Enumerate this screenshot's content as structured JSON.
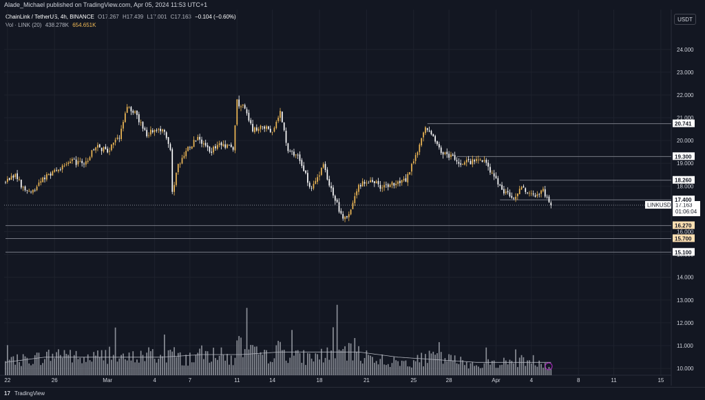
{
  "header": {
    "published": "Alade_Michael published on TradingView.com, Apr 05, 2024 11:53 UTC+1"
  },
  "legend": {
    "symbol": "ChainLink / TetherUS, 4h, BINANCE",
    "open": "O17.267",
    "high": "H17.439",
    "low": "L17.001",
    "close": "C17.163",
    "change": "−0.104 (−0.60%)",
    "vol_label": "Vol · LINK (20)",
    "vol_value": "438.278K",
    "vol_ma": "654.651K"
  },
  "unit_button": "USDT",
  "footer": {
    "brand": "TradingView"
  },
  "colors": {
    "background": "#131722",
    "up_candle": "#f0b955",
    "down_candle": "#ffffff",
    "grid": "#1e222d",
    "level_line": "#787b86",
    "current_price_line": "#b2b5be",
    "volume_bar": "#b2b5be",
    "highlight_label": "#ffe0b2"
  },
  "chart_data": {
    "type": "candlestick",
    "symbol": "LINKUSDT",
    "ylim": [
      9.7,
      24.9
    ],
    "y_ticks": [
      10.0,
      11.0,
      12.0,
      13.0,
      14.0,
      15.0,
      16.0,
      17.0,
      18.0,
      19.0,
      20.0,
      21.0,
      22.0,
      23.0,
      24.0
    ],
    "x_labels": [
      "22",
      "26",
      "Mar",
      "4",
      "7",
      "11",
      "14",
      "18",
      "21",
      "25",
      "28",
      "Apr",
      "4",
      "8",
      "11",
      "15"
    ],
    "x_label_candle_index": [
      1,
      25,
      52,
      76,
      94,
      118,
      136,
      160,
      184,
      208,
      226,
      250,
      268,
      292,
      310,
      334
    ],
    "levels": [
      20.741,
      19.3,
      18.26,
      17.4,
      16.27,
      15.7,
      15.1
    ],
    "highlighted_levels": [
      16.27,
      15.7
    ],
    "current_price": 17.163,
    "current_price_countdown": "01:06:04",
    "candle_count": 279,
    "close_anchors": [
      [
        0,
        18.2
      ],
      [
        5,
        18.5
      ],
      [
        10,
        17.75
      ],
      [
        15,
        17.9
      ],
      [
        20,
        18.4
      ],
      [
        28,
        18.8
      ],
      [
        34,
        19.1
      ],
      [
        40,
        18.9
      ],
      [
        46,
        19.8
      ],
      [
        52,
        19.5
      ],
      [
        58,
        20.2
      ],
      [
        62,
        21.6
      ],
      [
        66,
        21.2
      ],
      [
        72,
        20.3
      ],
      [
        80,
        20.5
      ],
      [
        84,
        19.6
      ],
      [
        85,
        17.8
      ],
      [
        88,
        18.9
      ],
      [
        92,
        19.6
      ],
      [
        98,
        20.1
      ],
      [
        104,
        19.5
      ],
      [
        110,
        19.9
      ],
      [
        116,
        19.6
      ],
      [
        118,
        21.7
      ],
      [
        122,
        21.4
      ],
      [
        126,
        20.4
      ],
      [
        130,
        20.7
      ],
      [
        136,
        20.3
      ],
      [
        140,
        21.3
      ],
      [
        144,
        19.6
      ],
      [
        150,
        19.2
      ],
      [
        156,
        17.8
      ],
      [
        162,
        18.9
      ],
      [
        168,
        17.4
      ],
      [
        172,
        16.6
      ],
      [
        176,
        16.9
      ],
      [
        180,
        18.0
      ],
      [
        186,
        18.3
      ],
      [
        192,
        17.9
      ],
      [
        198,
        18.1
      ],
      [
        204,
        18.3
      ],
      [
        208,
        19.1
      ],
      [
        214,
        20.6
      ],
      [
        218,
        20.1
      ],
      [
        222,
        19.5
      ],
      [
        228,
        19.3
      ],
      [
        232,
        19.0
      ],
      [
        238,
        19.1
      ],
      [
        244,
        19.2
      ],
      [
        248,
        18.5
      ],
      [
        254,
        17.8
      ],
      [
        258,
        17.5
      ],
      [
        264,
        17.9
      ],
      [
        270,
        17.6
      ],
      [
        274,
        17.8
      ],
      [
        278,
        17.16
      ]
    ],
    "volume_ylim": [
      0,
      40
    ],
    "volume_anchors": [
      [
        0,
        5
      ],
      [
        10,
        6
      ],
      [
        20,
        7
      ],
      [
        30,
        9
      ],
      [
        38,
        6
      ],
      [
        46,
        7
      ],
      [
        52,
        8
      ],
      [
        60,
        6
      ],
      [
        66,
        7
      ],
      [
        74,
        8
      ],
      [
        80,
        7
      ],
      [
        84,
        9
      ],
      [
        90,
        6
      ],
      [
        100,
        8
      ],
      [
        108,
        8
      ],
      [
        116,
        6
      ],
      [
        118,
        12
      ],
      [
        124,
        9
      ],
      [
        132,
        7
      ],
      [
        140,
        10
      ],
      [
        148,
        7
      ],
      [
        156,
        7
      ],
      [
        164,
        8
      ],
      [
        172,
        9
      ],
      [
        180,
        8
      ],
      [
        188,
        7
      ],
      [
        196,
        5
      ],
      [
        204,
        5
      ],
      [
        212,
        6
      ],
      [
        218,
        7
      ],
      [
        226,
        6
      ],
      [
        234,
        5
      ],
      [
        242,
        4
      ],
      [
        250,
        5
      ],
      [
        258,
        5
      ],
      [
        266,
        6
      ],
      [
        274,
        5
      ],
      [
        278,
        3
      ]
    ],
    "volume_ma_anchors": [
      [
        0,
        5
      ],
      [
        20,
        7
      ],
      [
        40,
        7
      ],
      [
        60,
        7
      ],
      [
        80,
        7
      ],
      [
        100,
        8
      ],
      [
        120,
        8
      ],
      [
        140,
        9
      ],
      [
        160,
        9
      ],
      [
        180,
        9
      ],
      [
        200,
        7
      ],
      [
        220,
        6
      ],
      [
        240,
        5
      ],
      [
        260,
        5
      ],
      [
        278,
        5
      ]
    ]
  }
}
